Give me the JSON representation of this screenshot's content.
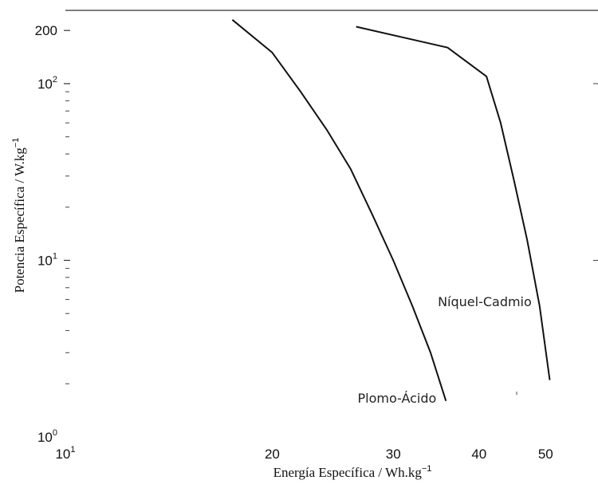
{
  "chart_data": {
    "type": "line",
    "title": "",
    "xlabel": "Energía Específica / Wh.kg",
    "xlabel_exp": "−1",
    "ylabel": "Potencia Específica / W.kg",
    "ylabel_exp": "−1",
    "x_scale": "log",
    "y_scale": "log",
    "xlim": [
      10,
      55
    ],
    "ylim": [
      1,
      260
    ],
    "grid": false,
    "x_ticks": [
      {
        "value": 10,
        "base": "10",
        "exp": "1"
      },
      {
        "value": 20,
        "base": "20",
        "exp": ""
      },
      {
        "value": 30,
        "base": "30",
        "exp": ""
      },
      {
        "value": 40,
        "base": "40",
        "exp": ""
      },
      {
        "value": 50,
        "base": "50",
        "exp": ""
      }
    ],
    "y_ticks": [
      {
        "value": 1,
        "base": "10",
        "exp": "0"
      },
      {
        "value": 10,
        "base": "10",
        "exp": "1"
      },
      {
        "value": 100,
        "base": "10",
        "exp": "2"
      },
      {
        "value": 200,
        "base": "200",
        "exp": ""
      }
    ],
    "series": [
      {
        "name": "Plomo-Ácido",
        "color": "#111111",
        "points": [
          [
            17.5,
            230
          ],
          [
            20,
            150
          ],
          [
            22,
            90
          ],
          [
            24,
            55
          ],
          [
            26,
            33
          ],
          [
            28,
            18
          ],
          [
            30,
            10
          ],
          [
            32,
            5.5
          ],
          [
            34,
            3.0
          ],
          [
            35.8,
            1.6
          ]
        ]
      },
      {
        "name": "Níquel-Cadmio",
        "color": "#111111",
        "points": [
          [
            26.5,
            210
          ],
          [
            36,
            160
          ],
          [
            41,
            110
          ],
          [
            43,
            60
          ],
          [
            45,
            28
          ],
          [
            47,
            13
          ],
          [
            49,
            5.5
          ],
          [
            50.7,
            2.1
          ]
        ]
      }
    ]
  }
}
